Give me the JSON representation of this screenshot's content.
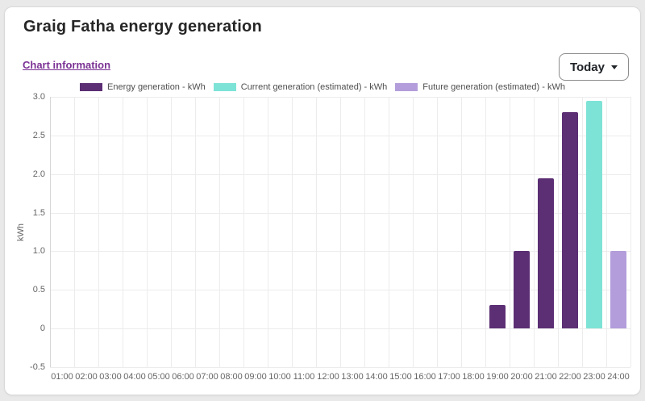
{
  "page": {
    "background_color": "#e9e9e9",
    "card_background_color": "#ffffff"
  },
  "header": {
    "title": "Graig Fatha energy generation"
  },
  "toolbar": {
    "chart_info_link": "Chart information",
    "period_button": {
      "label": "Today"
    }
  },
  "colors": {
    "link": "#7b3294",
    "energy_generation": "#5c2e74",
    "current_generation": "#7de3d6",
    "future_generation": "#b39ddb"
  },
  "legend": [
    {
      "key": "energy",
      "label": "Energy generation - kWh",
      "color": "#5c2e74"
    },
    {
      "key": "current",
      "label": "Current generation (estimated) - kWh",
      "color": "#7de3d6"
    },
    {
      "key": "future",
      "label": "Future generation (estimated) - kWh",
      "color": "#b39ddb"
    }
  ],
  "chart_data": {
    "type": "bar",
    "title": "Graig Fatha energy generation",
    "xlabel": "",
    "ylabel": "kWh",
    "ylim": [
      -0.5,
      3.0
    ],
    "ytick_step": 0.5,
    "yticks": [
      "3.0",
      "2.5",
      "2.0",
      "1.5",
      "1.0",
      "0.5",
      "0",
      "-0.5"
    ],
    "grid": true,
    "legend_position": "top",
    "categories": [
      "01:00",
      "02:00",
      "03:00",
      "04:00",
      "05:00",
      "06:00",
      "07:00",
      "08:00",
      "09:00",
      "10:00",
      "11:00",
      "12:00",
      "13:00",
      "14:00",
      "15:00",
      "16:00",
      "17:00",
      "18:00",
      "19:00",
      "20:00",
      "21:00",
      "22:00",
      "23:00",
      "24:00"
    ],
    "series": [
      {
        "key": "energy",
        "name": "Energy generation - kWh",
        "color": "#5c2e74",
        "values": [
          0,
          0,
          0,
          0,
          0,
          0,
          0,
          0,
          0,
          0,
          0,
          0,
          0,
          0,
          0,
          0,
          0,
          0,
          0.3,
          1.0,
          1.95,
          2.8,
          0,
          0
        ]
      },
      {
        "key": "current",
        "name": "Current generation (estimated) - kWh",
        "color": "#7de3d6",
        "values": [
          0,
          0,
          0,
          0,
          0,
          0,
          0,
          0,
          0,
          0,
          0,
          0,
          0,
          0,
          0,
          0,
          0,
          0,
          0,
          0,
          0,
          0,
          2.95,
          0
        ]
      },
      {
        "key": "future",
        "name": "Future generation (estimated) - kWh",
        "color": "#b39ddb",
        "values": [
          0,
          0,
          0,
          0,
          0,
          0,
          0,
          0,
          0,
          0,
          0,
          0,
          0,
          0,
          0,
          0,
          0,
          0,
          0,
          0,
          0,
          0,
          0,
          1.0
        ]
      }
    ]
  }
}
